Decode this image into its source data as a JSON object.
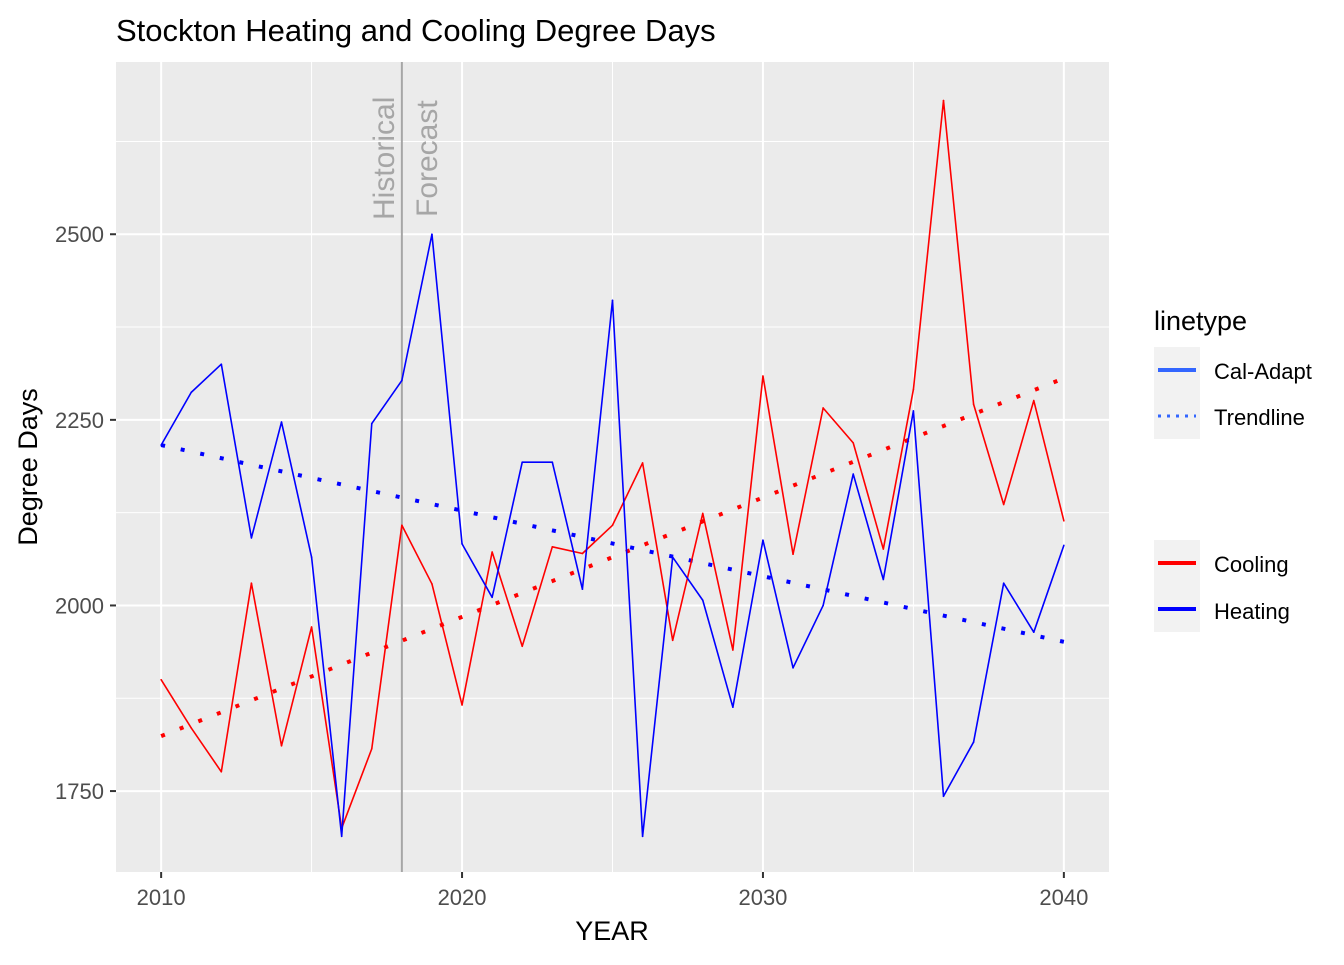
{
  "chart_data": {
    "type": "line",
    "title": "Stockton Heating and Cooling Degree Days",
    "xlabel": "YEAR",
    "ylabel": "Degree Days",
    "xlim": [
      2008.5,
      2041.5
    ],
    "ylim": [
      1641,
      2732
    ],
    "x_ticks": [
      2010,
      2020,
      2030,
      2040
    ],
    "y_ticks": [
      1750,
      2000,
      2250,
      2500
    ],
    "grid": true,
    "x": [
      2010,
      2011,
      2012,
      2013,
      2014,
      2015,
      2016,
      2017,
      2018,
      2019,
      2020,
      2021,
      2022,
      2023,
      2024,
      2025,
      2026,
      2027,
      2028,
      2029,
      2030,
      2031,
      2032,
      2033,
      2034,
      2035,
      2036,
      2037,
      2038,
      2039,
      2040
    ],
    "series": [
      {
        "name": "Cooling",
        "color": "#FF0000",
        "linetype": "Cal-Adapt",
        "values": [
          1900,
          1835,
          1776,
          2030,
          1811,
          1971,
          1700,
          1807,
          2108,
          2029,
          1866,
          2072,
          1945,
          2079,
          2070,
          2108,
          2192,
          1953,
          2124,
          1940,
          2309,
          2069,
          2266,
          2219,
          2076,
          2291,
          2680,
          2271,
          2136,
          2276,
          2114
        ]
      },
      {
        "name": "Heating",
        "color": "#0000FF",
        "linetype": "Cal-Adapt",
        "values": [
          2216,
          2287,
          2325,
          2091,
          2247,
          2065,
          1689,
          2245,
          2303,
          2500,
          2083,
          2011,
          2193,
          2193,
          2022,
          2411,
          1689,
          2065,
          2007,
          1863,
          2088,
          1916,
          2000,
          2177,
          2035,
          2262,
          1743,
          1816,
          2030,
          1964,
          2081
        ]
      }
    ],
    "trendlines": [
      {
        "name": "Cooling",
        "color": "#FF0000",
        "linetype": "Trendline",
        "start": [
          2010,
          1824
        ],
        "end": [
          2040,
          2306
        ]
      },
      {
        "name": "Heating",
        "color": "#0000FF",
        "linetype": "Trendline",
        "start": [
          2010,
          2216
        ],
        "end": [
          2040,
          1951
        ]
      }
    ],
    "annotations": {
      "vline_year": 2018,
      "vline_color": "#A6A6A6",
      "left_label": "Historical",
      "right_label": "Forecast"
    },
    "legend": {
      "placement": "right",
      "linetype_title": "linetype",
      "linetype_items": [
        {
          "label": "Cal-Adapt",
          "style": "solid",
          "color": "#3366FF"
        },
        {
          "label": "Trendline",
          "style": "dotted",
          "color": "#3366FF"
        }
      ],
      "color_items": [
        {
          "label": "Cooling",
          "color": "#FF0000"
        },
        {
          "label": "Heating",
          "color": "#0000FF"
        }
      ]
    }
  }
}
